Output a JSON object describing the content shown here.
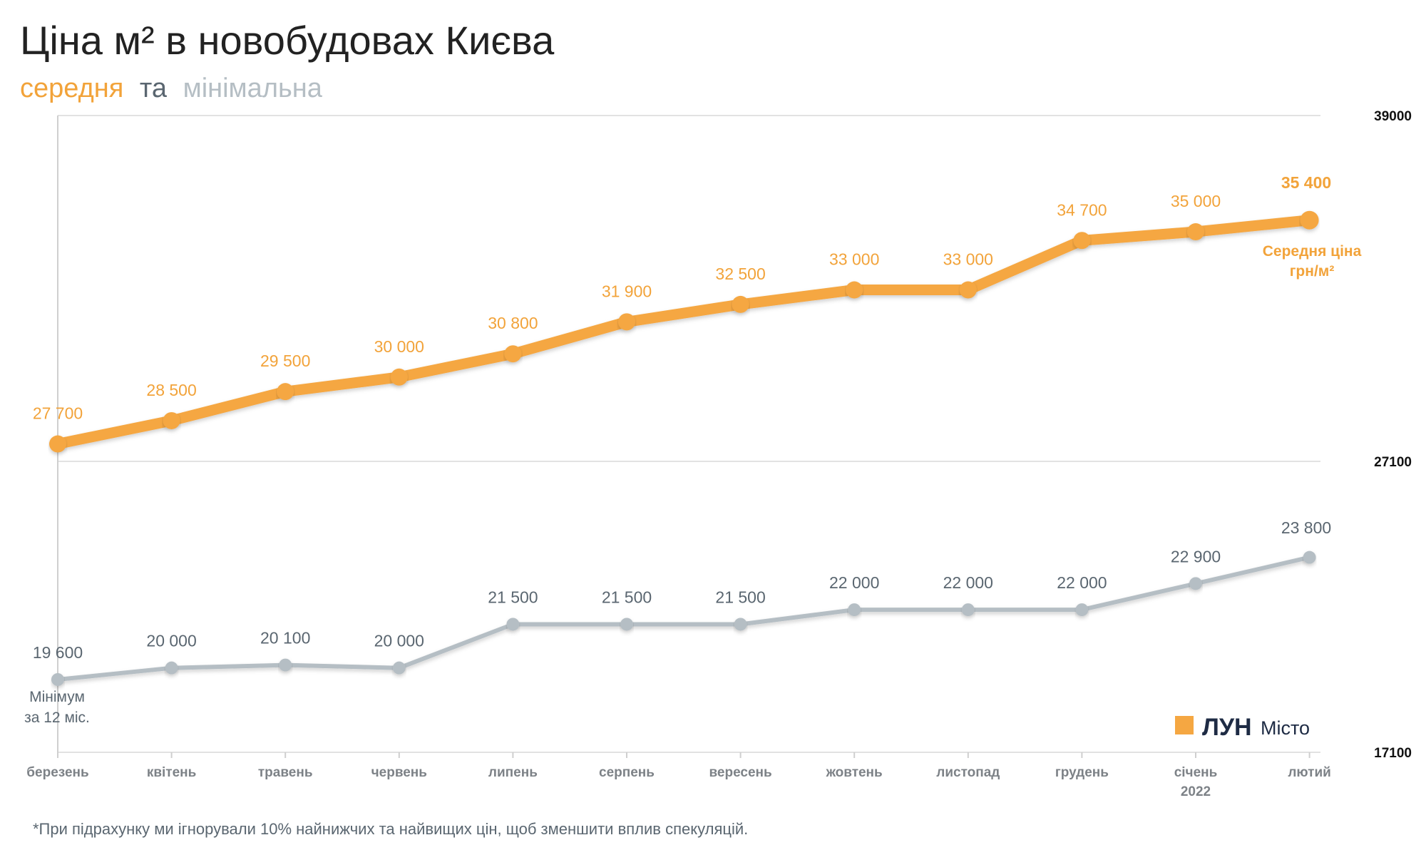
{
  "chart_data": {
    "type": "line",
    "title": "Ціна м² в новобудовах Києва",
    "subtitle": {
      "part1": "середня",
      "part2": "та",
      "part3": "мінімальна"
    },
    "categories": [
      "березень",
      "квітень",
      "травень",
      "червень",
      "липень",
      "серпень",
      "вересень",
      "жовтень",
      "листопад",
      "грудень",
      "січень",
      "лютий"
    ],
    "category_sublabels": {
      "10": "2022"
    },
    "y_ticks": [
      "39000",
      "27100",
      "17100"
    ],
    "ylim": [
      17100,
      39000
    ],
    "grid": true,
    "series": [
      {
        "key": "avg",
        "values": [
          27700,
          28500,
          29500,
          30000,
          30800,
          31900,
          32500,
          33000,
          33000,
          34700,
          35000,
          35400
        ],
        "labels": [
          "27 700",
          "28 500",
          "29 500",
          "30 000",
          "30 800",
          "31 900",
          "32 500",
          "33 000",
          "33 000",
          "34 700",
          "35 000",
          "35 400"
        ],
        "color": "#f5a742"
      },
      {
        "key": "min",
        "values": [
          19600,
          20000,
          20100,
          20000,
          21500,
          21500,
          21500,
          22000,
          22000,
          22000,
          22900,
          23800
        ],
        "labels": [
          "19 600",
          "20 000",
          "20 100",
          "20 000",
          "21 500",
          "21 500",
          "21 500",
          "22 000",
          "22 000",
          "22 000",
          "22 900",
          "23 800"
        ],
        "color": "#b5bec4"
      }
    ],
    "annotations": {
      "avg_line1": "Середня ціна",
      "avg_line2": "грн/м²",
      "min_line1": "Мінімум",
      "min_line2": "за 12 міс."
    },
    "footnote": "*При підрахунку ми ігнорували 10% найнижчих та найвищих цін, щоб зменшити вплив спекуляцій."
  },
  "logo": {
    "name": "ЛУН",
    "sub": "Місто"
  },
  "colors": {
    "subtitle_avg": "#f2a33a",
    "subtitle_mid": "#5a6670",
    "subtitle_min": "#b5bec4",
    "logo_square": "#f5a742"
  }
}
